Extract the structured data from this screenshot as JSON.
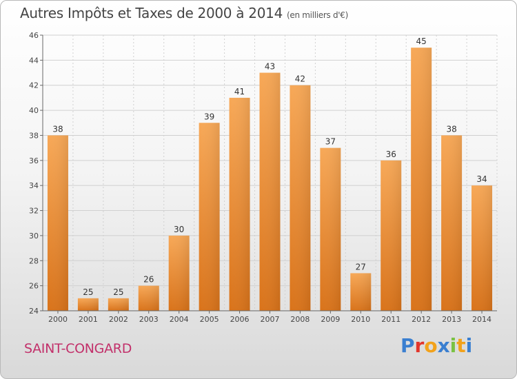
{
  "title": "Autres Impôts et Taxes de 2000 à 2014",
  "unit": "(en milliers d'€)",
  "commune": "SAINT-CONGARD",
  "brand": {
    "text": "Proxiti",
    "letter_colors": [
      "#3a7fd0",
      "#e2352b",
      "#f2a21b",
      "#3a7fd0",
      "#7ac143",
      "#f2a21b",
      "#3a7fd0"
    ]
  },
  "colors": {
    "bar_light": "#f7a857",
    "bar_dark": "#d9731a",
    "grid": "#d0d0d0"
  },
  "chart_data": {
    "type": "bar",
    "title": "Autres Impôts et Taxes de 2000 à 2014",
    "subtitle": "(en milliers d'€)",
    "categories": [
      "2000",
      "2001",
      "2002",
      "2003",
      "2004",
      "2005",
      "2006",
      "2007",
      "2008",
      "2009",
      "2010",
      "2011",
      "2012",
      "2013",
      "2014"
    ],
    "values": [
      38,
      25,
      25,
      26,
      30,
      39,
      41,
      43,
      42,
      37,
      27,
      36,
      45,
      38,
      34
    ],
    "ylim": [
      24,
      46
    ],
    "yticks": [
      24,
      26,
      28,
      30,
      32,
      34,
      36,
      38,
      40,
      42,
      44,
      46
    ],
    "grid": true,
    "data_labels": true
  }
}
